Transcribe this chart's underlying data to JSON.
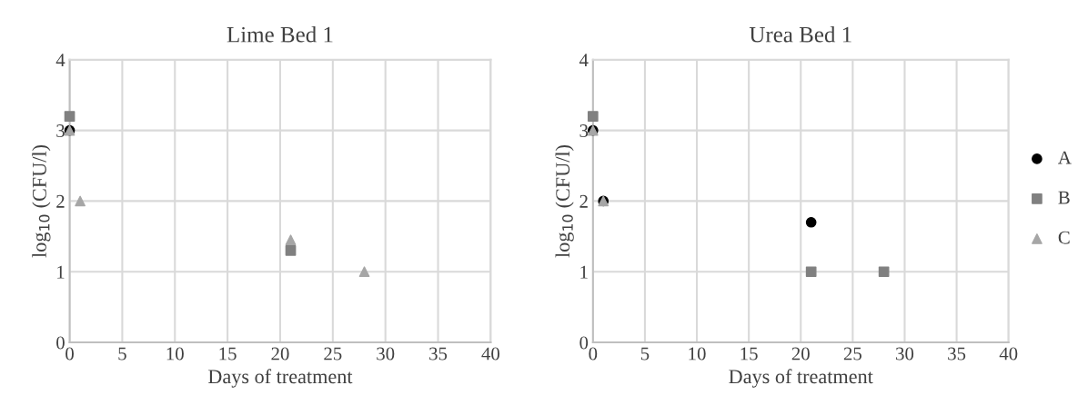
{
  "chart_data": [
    {
      "type": "scatter",
      "title": "Lime Bed 1",
      "xlabel": "Days of treatment",
      "ylabel": "log$_{10}$ (CFU/l)",
      "xlim": [
        0,
        40
      ],
      "ylim": [
        0,
        4
      ],
      "xticks": [
        0,
        5,
        10,
        15,
        20,
        25,
        30,
        35,
        40
      ],
      "yticks": [
        0,
        1,
        2,
        3,
        4
      ],
      "grid": true,
      "series": [
        {
          "color": "#000000",
          "marker": "circle",
          "x": [
            0
          ],
          "values": [
            3
          ]
        },
        {
          "color": "#808080",
          "marker": "square",
          "x": [
            0,
            21
          ],
          "values": [
            3.2,
            1.3
          ]
        },
        {
          "color": "#a6a6a6",
          "marker": "triangle",
          "x": [
            0,
            1,
            21,
            28
          ],
          "values": [
            3,
            2,
            1.45,
            1
          ]
        }
      ]
    },
    {
      "type": "scatter",
      "title": "Urea Bed 1",
      "xlabel": "Days of treatment",
      "ylabel": "log$_{10}$ (CFU/l)",
      "xlim": [
        0,
        40
      ],
      "ylim": [
        0,
        4
      ],
      "xticks": [
        0,
        5,
        10,
        15,
        20,
        25,
        30,
        35,
        40
      ],
      "yticks": [
        0,
        1,
        2,
        3,
        4
      ],
      "grid": true,
      "legend": "right",
      "series": [
        {
          "name": "A",
          "color": "#000000",
          "marker": "circle",
          "x": [
            0,
            1,
            21
          ],
          "values": [
            3,
            2,
            1.7
          ]
        },
        {
          "name": "B",
          "color": "#808080",
          "marker": "square",
          "x": [
            0,
            21,
            28
          ],
          "values": [
            3.2,
            1,
            1
          ]
        },
        {
          "name": "C",
          "color": "#a6a6a6",
          "marker": "triangle",
          "x": [
            0,
            1
          ],
          "values": [
            3,
            2
          ]
        }
      ]
    }
  ]
}
